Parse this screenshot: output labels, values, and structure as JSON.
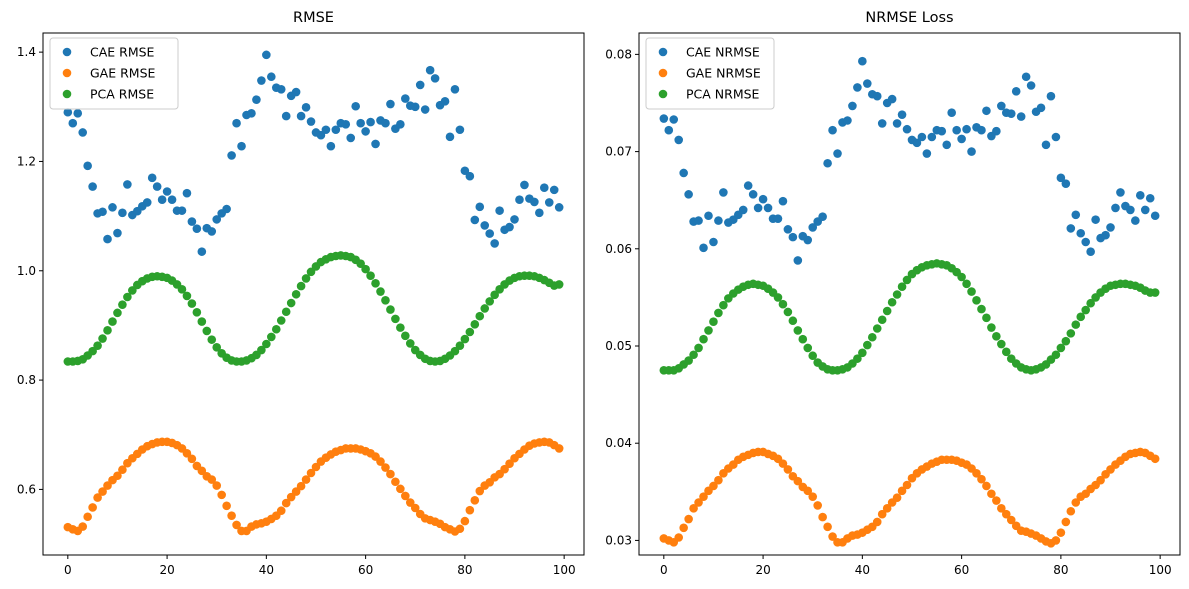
{
  "chart_data": [
    {
      "type": "scatter",
      "title": "RMSE",
      "xlabel": "",
      "ylabel": "",
      "xlim": [
        -5,
        104
      ],
      "ylim": [
        0.48,
        1.435
      ],
      "xticks": [
        0,
        20,
        40,
        60,
        80,
        100
      ],
      "yticks": [
        0.6,
        0.8,
        1.0,
        1.2,
        1.4
      ],
      "ytick_labels": [
        "0.6",
        "0.8",
        "1.0",
        "1.2",
        "1.4"
      ],
      "grid": false,
      "legend_position": "top-left",
      "x": [
        0,
        1,
        2,
        3,
        4,
        5,
        6,
        7,
        8,
        9,
        10,
        11,
        12,
        13,
        14,
        15,
        16,
        17,
        18,
        19,
        20,
        21,
        22,
        23,
        24,
        25,
        26,
        27,
        28,
        29,
        30,
        31,
        32,
        33,
        34,
        35,
        36,
        37,
        38,
        39,
        40,
        41,
        42,
        43,
        44,
        45,
        46,
        47,
        48,
        49,
        50,
        51,
        52,
        53,
        54,
        55,
        56,
        57,
        58,
        59,
        60,
        61,
        62,
        63,
        64,
        65,
        66,
        67,
        68,
        69,
        70,
        71,
        72,
        73,
        74,
        75,
        76,
        77,
        78,
        79,
        80,
        81,
        82,
        83,
        84,
        85,
        86,
        87,
        88,
        89,
        90,
        91,
        92,
        93,
        94,
        95,
        96,
        97,
        98,
        99
      ],
      "series": [
        {
          "name": "CAE RMSE",
          "color": "#1f77b4",
          "values": [
            1.29,
            1.27,
            1.288,
            1.253,
            1.192,
            1.154,
            1.105,
            1.108,
            1.058,
            1.116,
            1.069,
            1.106,
            1.158,
            1.102,
            1.109,
            1.118,
            1.125,
            1.17,
            1.154,
            1.13,
            1.145,
            1.13,
            1.11,
            1.11,
            1.142,
            1.09,
            1.077,
            1.035,
            1.078,
            1.072,
            1.094,
            1.105,
            1.113,
            1.211,
            1.27,
            1.228,
            1.285,
            1.288,
            1.313,
            1.348,
            1.395,
            1.355,
            1.335,
            1.332,
            1.283,
            1.32,
            1.327,
            1.283,
            1.299,
            1.273,
            1.253,
            1.248,
            1.258,
            1.228,
            1.258,
            1.27,
            1.268,
            1.243,
            1.301,
            1.27,
            1.255,
            1.272,
            1.232,
            1.275,
            1.27,
            1.305,
            1.26,
            1.268,
            1.315,
            1.302,
            1.3,
            1.34,
            1.295,
            1.367,
            1.352,
            1.303,
            1.31,
            1.245,
            1.332,
            1.258,
            1.183,
            1.173,
            1.093,
            1.117,
            1.083,
            1.068,
            1.05,
            1.11,
            1.075,
            1.08,
            1.094,
            1.13,
            1.157,
            1.132,
            1.126,
            1.106,
            1.152,
            1.125,
            1.148,
            1.116
          ]
        },
        {
          "name": "GAE RMSE",
          "color": "#ff7f0e",
          "values": [
            0.531,
            0.527,
            0.524,
            0.532,
            0.55,
            0.567,
            0.585,
            0.596,
            0.607,
            0.617,
            0.625,
            0.636,
            0.648,
            0.657,
            0.665,
            0.673,
            0.679,
            0.683,
            0.686,
            0.687,
            0.687,
            0.685,
            0.681,
            0.675,
            0.666,
            0.656,
            0.643,
            0.634,
            0.624,
            0.618,
            0.607,
            0.59,
            0.57,
            0.552,
            0.535,
            0.524,
            0.524,
            0.532,
            0.536,
            0.538,
            0.541,
            0.546,
            0.552,
            0.561,
            0.575,
            0.586,
            0.596,
            0.606,
            0.618,
            0.63,
            0.641,
            0.651,
            0.658,
            0.664,
            0.669,
            0.672,
            0.675,
            0.675,
            0.675,
            0.673,
            0.67,
            0.666,
            0.66,
            0.651,
            0.64,
            0.628,
            0.614,
            0.601,
            0.588,
            0.576,
            0.566,
            0.555,
            0.547,
            0.544,
            0.541,
            0.537,
            0.531,
            0.527,
            0.523,
            0.528,
            0.542,
            0.562,
            0.58,
            0.597,
            0.607,
            0.613,
            0.622,
            0.628,
            0.637,
            0.647,
            0.657,
            0.665,
            0.673,
            0.68,
            0.684,
            0.686,
            0.687,
            0.686,
            0.681,
            0.675
          ]
        },
        {
          "name": "PCA RMSE",
          "color": "#2ca02c",
          "values": [
            0.834,
            0.834,
            0.835,
            0.838,
            0.845,
            0.853,
            0.863,
            0.876,
            0.891,
            0.907,
            0.923,
            0.938,
            0.952,
            0.964,
            0.974,
            0.981,
            0.986,
            0.989,
            0.99,
            0.989,
            0.987,
            0.982,
            0.975,
            0.966,
            0.954,
            0.94,
            0.924,
            0.907,
            0.89,
            0.874,
            0.86,
            0.849,
            0.841,
            0.836,
            0.834,
            0.834,
            0.836,
            0.84,
            0.846,
            0.855,
            0.866,
            0.879,
            0.893,
            0.909,
            0.925,
            0.941,
            0.957,
            0.972,
            0.986,
            0.998,
            1.008,
            1.016,
            1.021,
            1.025,
            1.027,
            1.028,
            1.027,
            1.025,
            1.02,
            1.013,
            1.003,
            0.991,
            0.977,
            0.962,
            0.946,
            0.929,
            0.912,
            0.896,
            0.881,
            0.867,
            0.855,
            0.846,
            0.839,
            0.835,
            0.834,
            0.835,
            0.839,
            0.845,
            0.853,
            0.863,
            0.875,
            0.888,
            0.902,
            0.917,
            0.931,
            0.944,
            0.956,
            0.966,
            0.975,
            0.982,
            0.987,
            0.99,
            0.991,
            0.991,
            0.99,
            0.987,
            0.983,
            0.978,
            0.973,
            0.975
          ]
        }
      ]
    },
    {
      "type": "scatter",
      "title": "NRMSE Loss",
      "xlabel": "",
      "ylabel": "",
      "xlim": [
        -5,
        104
      ],
      "ylim": [
        0.0285,
        0.0822
      ],
      "xticks": [
        0,
        20,
        40,
        60,
        80,
        100
      ],
      "yticks": [
        0.03,
        0.04,
        0.05,
        0.06,
        0.07,
        0.08
      ],
      "ytick_labels": [
        "0.03",
        "0.04",
        "0.05",
        "0.06",
        "0.07",
        "0.08"
      ],
      "grid": false,
      "legend_position": "top-left",
      "x": [
        0,
        1,
        2,
        3,
        4,
        5,
        6,
        7,
        8,
        9,
        10,
        11,
        12,
        13,
        14,
        15,
        16,
        17,
        18,
        19,
        20,
        21,
        22,
        23,
        24,
        25,
        26,
        27,
        28,
        29,
        30,
        31,
        32,
        33,
        34,
        35,
        36,
        37,
        38,
        39,
        40,
        41,
        42,
        43,
        44,
        45,
        46,
        47,
        48,
        49,
        50,
        51,
        52,
        53,
        54,
        55,
        56,
        57,
        58,
        59,
        60,
        61,
        62,
        63,
        64,
        65,
        66,
        67,
        68,
        69,
        70,
        71,
        72,
        73,
        74,
        75,
        76,
        77,
        78,
        79,
        80,
        81,
        82,
        83,
        84,
        85,
        86,
        87,
        88,
        89,
        90,
        91,
        92,
        93,
        94,
        95,
        96,
        97,
        98,
        99
      ],
      "series": [
        {
          "name": "CAE NRMSE",
          "color": "#1f77b4",
          "values": [
            0.0734,
            0.0722,
            0.0733,
            0.0712,
            0.0678,
            0.0656,
            0.0628,
            0.0629,
            0.0601,
            0.0634,
            0.0607,
            0.0629,
            0.0658,
            0.0627,
            0.063,
            0.0635,
            0.064,
            0.0665,
            0.0656,
            0.0642,
            0.0651,
            0.0642,
            0.0631,
            0.0631,
            0.0649,
            0.062,
            0.0612,
            0.0588,
            0.0613,
            0.0609,
            0.0622,
            0.0628,
            0.0633,
            0.0688,
            0.0722,
            0.0698,
            0.073,
            0.0732,
            0.0747,
            0.0766,
            0.0793,
            0.077,
            0.0759,
            0.0757,
            0.0729,
            0.075,
            0.0754,
            0.0729,
            0.0738,
            0.0723,
            0.0712,
            0.0709,
            0.0715,
            0.0698,
            0.0715,
            0.0722,
            0.0721,
            0.0707,
            0.074,
            0.0722,
            0.0713,
            0.0723,
            0.07,
            0.0725,
            0.0722,
            0.0742,
            0.0716,
            0.0721,
            0.0747,
            0.074,
            0.0739,
            0.0762,
            0.0736,
            0.0777,
            0.0768,
            0.0741,
            0.0745,
            0.0707,
            0.0757,
            0.0715,
            0.0673,
            0.0667,
            0.0621,
            0.0635,
            0.0616,
            0.0607,
            0.0597,
            0.063,
            0.0611,
            0.0614,
            0.0622,
            0.0642,
            0.0658,
            0.0644,
            0.064,
            0.0629,
            0.0655,
            0.064,
            0.0652,
            0.0634
          ]
        },
        {
          "name": "GAE NRMSE",
          "color": "#ff7f0e",
          "values": [
            0.0302,
            0.03,
            0.0298,
            0.0303,
            0.0313,
            0.0322,
            0.0333,
            0.0339,
            0.0345,
            0.0351,
            0.0356,
            0.0362,
            0.0369,
            0.0374,
            0.0378,
            0.0383,
            0.0386,
            0.0388,
            0.039,
            0.0391,
            0.0391,
            0.0389,
            0.0387,
            0.0384,
            0.0379,
            0.0373,
            0.0366,
            0.0361,
            0.0355,
            0.0351,
            0.0345,
            0.0336,
            0.0324,
            0.0314,
            0.0304,
            0.0298,
            0.0298,
            0.0302,
            0.0305,
            0.0306,
            0.0308,
            0.0311,
            0.0314,
            0.0319,
            0.0327,
            0.0333,
            0.0339,
            0.0344,
            0.0351,
            0.0357,
            0.0364,
            0.0369,
            0.0373,
            0.0376,
            0.0379,
            0.0381,
            0.0383,
            0.0383,
            0.0383,
            0.0382,
            0.038,
            0.0378,
            0.0374,
            0.0369,
            0.0363,
            0.0356,
            0.0348,
            0.0341,
            0.0333,
            0.0327,
            0.0321,
            0.0315,
            0.031,
            0.0309,
            0.0307,
            0.0305,
            0.0302,
            0.0299,
            0.0297,
            0.03,
            0.0308,
            0.0319,
            0.033,
            0.0339,
            0.0345,
            0.0348,
            0.0353,
            0.0357,
            0.0362,
            0.0368,
            0.0373,
            0.0378,
            0.0382,
            0.0386,
            0.0389,
            0.039,
            0.0391,
            0.039,
            0.0387,
            0.0384
          ]
        },
        {
          "name": "PCA NRMSE",
          "color": "#2ca02c",
          "values": [
            0.0475,
            0.0475,
            0.0475,
            0.0477,
            0.0481,
            0.0485,
            0.0491,
            0.0498,
            0.0507,
            0.0516,
            0.0525,
            0.0534,
            0.0542,
            0.0549,
            0.0554,
            0.0558,
            0.0561,
            0.0563,
            0.0564,
            0.0563,
            0.0562,
            0.0559,
            0.0555,
            0.055,
            0.0543,
            0.0535,
            0.0526,
            0.0516,
            0.0507,
            0.0498,
            0.049,
            0.0483,
            0.0479,
            0.0476,
            0.0475,
            0.0475,
            0.0476,
            0.0478,
            0.0482,
            0.0487,
            0.0493,
            0.0501,
            0.0509,
            0.0518,
            0.0527,
            0.0536,
            0.0545,
            0.0553,
            0.0561,
            0.0568,
            0.0574,
            0.0578,
            0.0581,
            0.0583,
            0.0584,
            0.0585,
            0.0584,
            0.0583,
            0.058,
            0.0576,
            0.0571,
            0.0564,
            0.0556,
            0.0547,
            0.0538,
            0.0529,
            0.0519,
            0.051,
            0.0502,
            0.0494,
            0.0487,
            0.0482,
            0.0478,
            0.0476,
            0.0475,
            0.0476,
            0.0478,
            0.0481,
            0.0486,
            0.0491,
            0.0498,
            0.0505,
            0.0513,
            0.0522,
            0.053,
            0.0537,
            0.0544,
            0.055,
            0.0555,
            0.0559,
            0.0562,
            0.0563,
            0.0564,
            0.0564,
            0.0563,
            0.0562,
            0.056,
            0.0557,
            0.0555,
            0.0555
          ]
        }
      ]
    }
  ]
}
